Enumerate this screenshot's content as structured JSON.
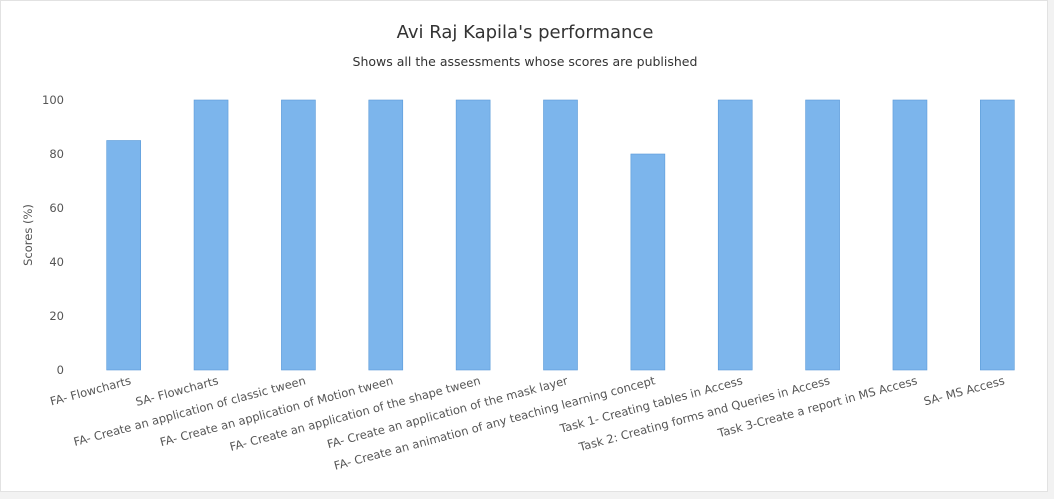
{
  "chart_data": {
    "type": "bar",
    "title": "Avi Raj Kapila's performance",
    "subtitle": "Shows all the assessments whose scores are published",
    "xlabel": "",
    "ylabel": "Scores (%)",
    "ylim": [
      0,
      100
    ],
    "yticks": [
      0,
      20,
      40,
      60,
      80,
      100
    ],
    "grid": false,
    "categories": [
      "FA- Flowcharts",
      "SA- Flowcharts",
      "FA- Create an application of classic tween",
      "FA- Create an application of Motion tween",
      "FA- Create an application of the shape tween",
      "FA- Create an application of the mask layer",
      "FA- Create an animation of any teaching learning concept",
      "Task 1- Creating tables in Access",
      "Task 2: Creating forms and Queries in Access",
      "Task 3-Create a report in MS Access",
      "SA- MS Access"
    ],
    "values": [
      85,
      100,
      100,
      100,
      100,
      100,
      80,
      100,
      100,
      100,
      100
    ],
    "bar_color": "#7cb5ec",
    "bar_stroke": "#5a9ad8"
  }
}
